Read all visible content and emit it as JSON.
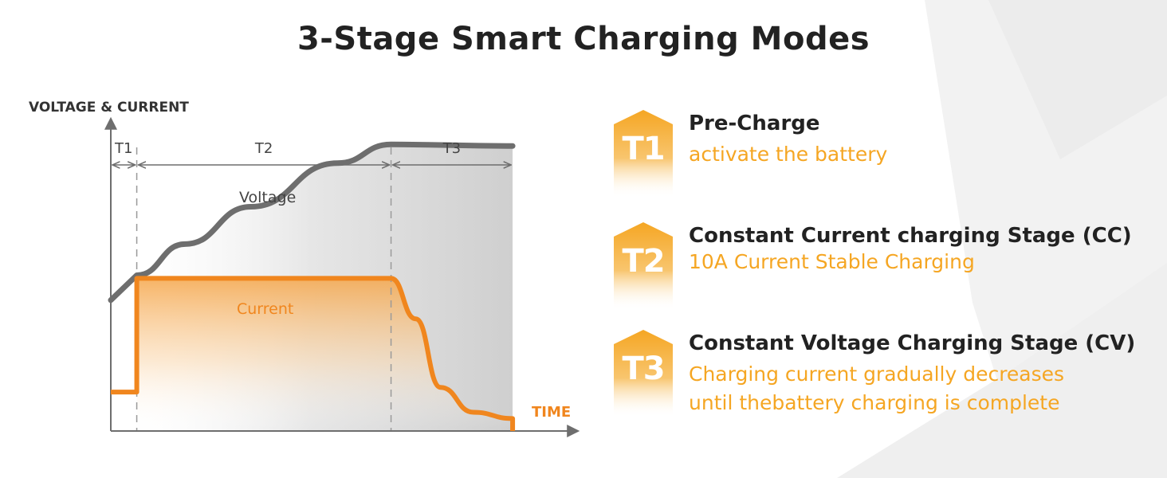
{
  "title": "3-Stage Smart Charging Modes",
  "colors": {
    "accent": "#f5a623",
    "current_line": "#f0861e",
    "voltage_line": "#6e6e6e",
    "axis": "#6e6e6e",
    "title": "#222222"
  },
  "chart_data": {
    "type": "line",
    "ylabel": "VOLTAGE & CURRENT",
    "xlabel": "TIME",
    "xlim": [
      0,
      1
    ],
    "ylim": [
      0,
      1
    ],
    "grid": false,
    "stage_boundaries": [
      0.063,
      0.68
    ],
    "phases": [
      {
        "label": "T1",
        "start": 0.0,
        "end": 0.063
      },
      {
        "label": "T2",
        "start": 0.063,
        "end": 0.68
      },
      {
        "label": "T3",
        "start": 0.68,
        "end": 0.975
      }
    ],
    "series": [
      {
        "name": "Voltage",
        "label": "Voltage",
        "x": [
          0.0,
          0.063,
          0.18,
          0.34,
          0.55,
          0.68,
          0.975
        ],
        "y": [
          0.42,
          0.5,
          0.6,
          0.72,
          0.86,
          0.92,
          0.915
        ]
      },
      {
        "name": "Current",
        "label": "Current",
        "x": [
          0.0,
          0.063,
          0.063,
          0.68,
          0.74,
          0.8,
          0.88,
          0.975,
          0.975
        ],
        "y": [
          0.125,
          0.125,
          0.49,
          0.49,
          0.36,
          0.14,
          0.06,
          0.04,
          0.0
        ]
      }
    ]
  },
  "stages": [
    {
      "badge": "T1",
      "title": "Pre-Charge",
      "lines": [
        "activate the battery"
      ]
    },
    {
      "badge": "T2",
      "title": "Constant Current charging Stage (CC)",
      "lines": [
        "10A Current Stable Charging"
      ]
    },
    {
      "badge": "T3",
      "title": "Constant Voltage Charging Stage (CV)",
      "lines": [
        "Charging current gradually decreases",
        "until thebattery charging is complete"
      ]
    }
  ]
}
